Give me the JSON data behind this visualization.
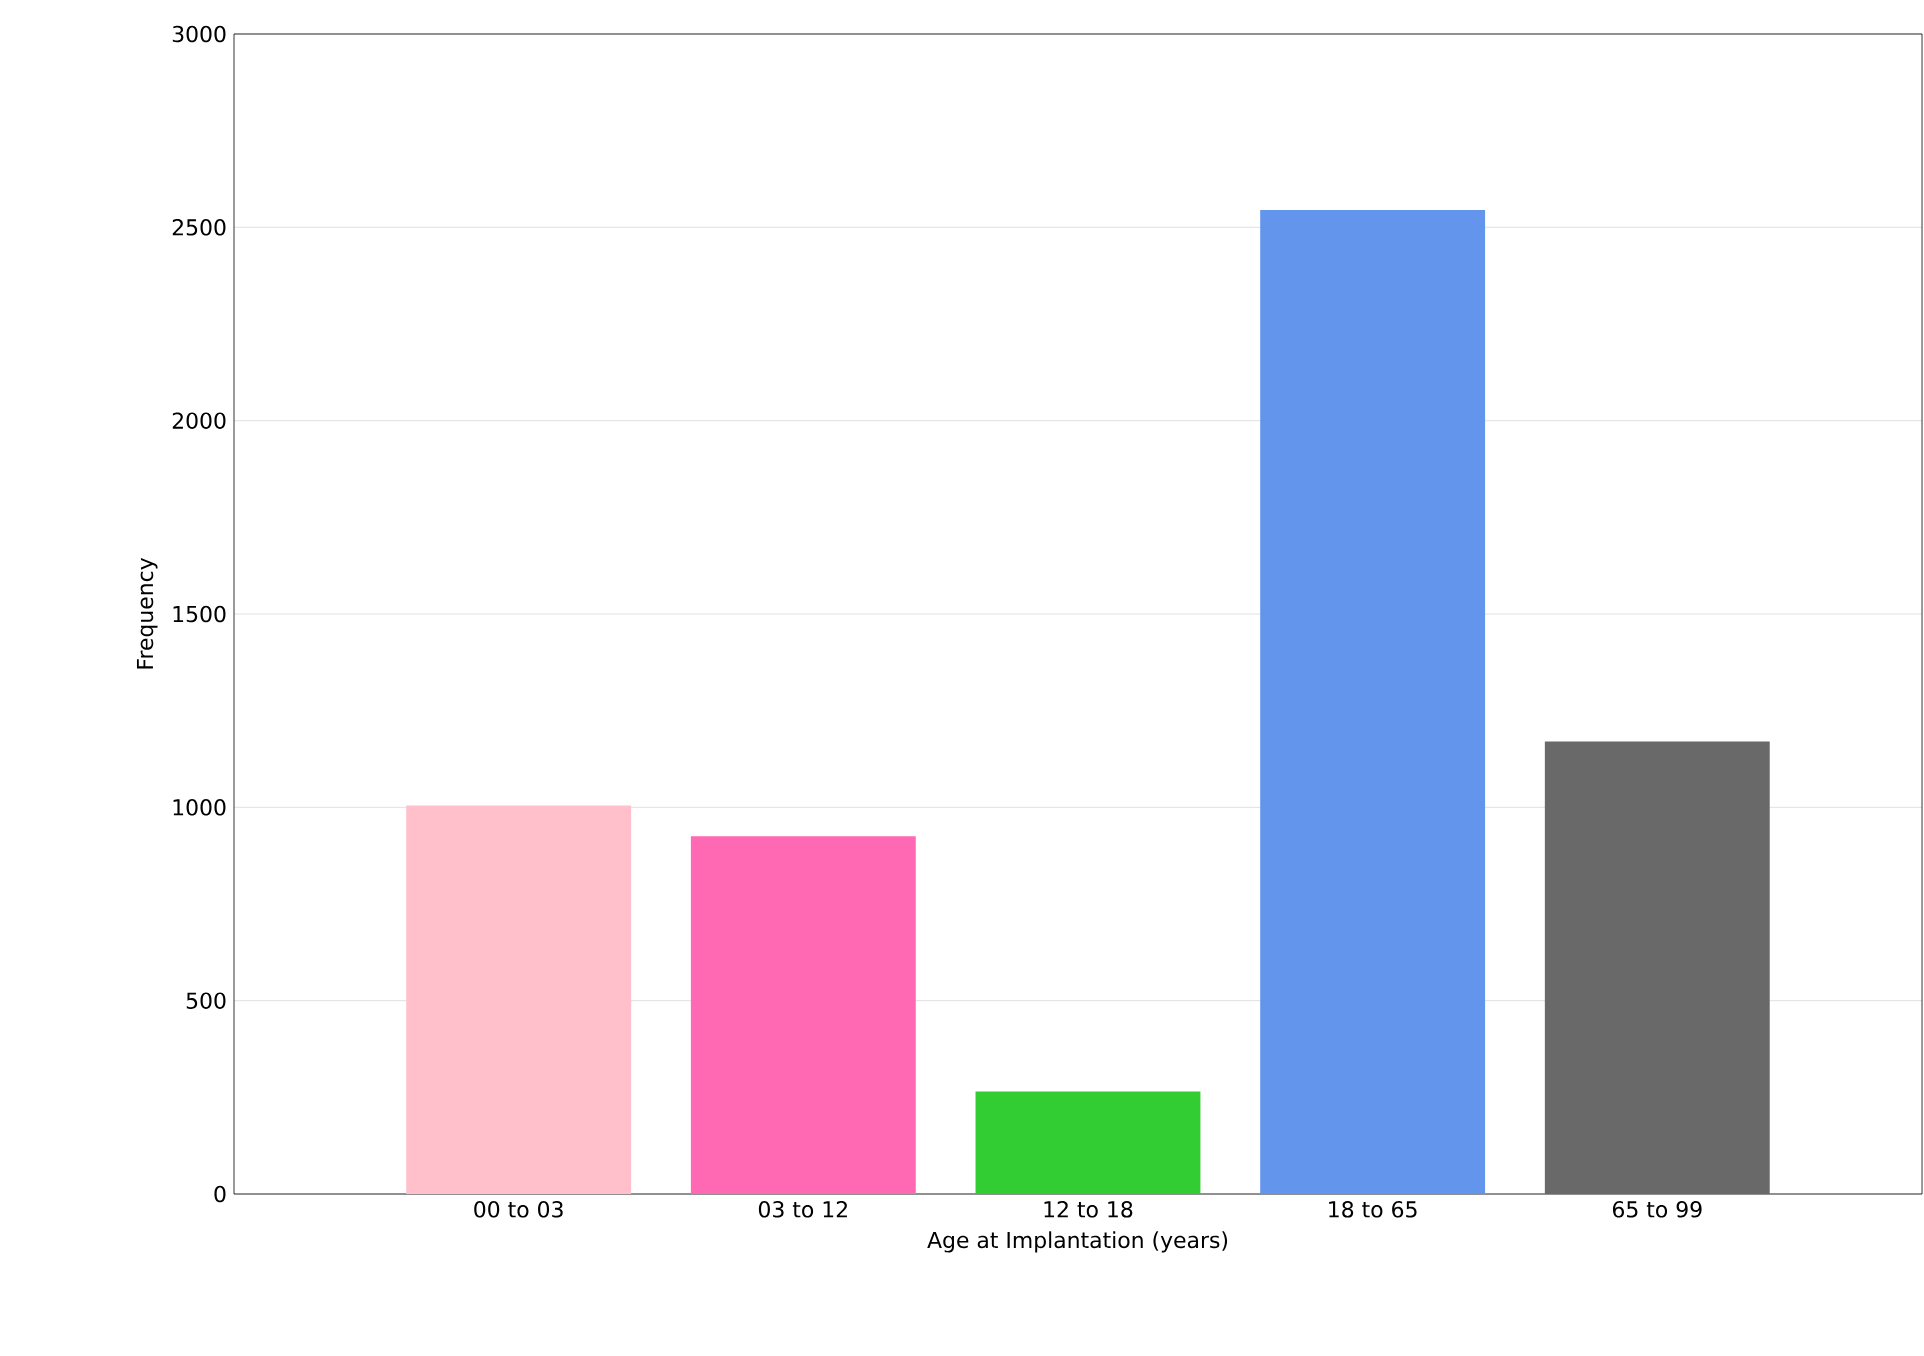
{
  "chart_data": {
    "type": "bar",
    "xlabel": "Age at Implantation (years)",
    "ylabel": "Frequency",
    "categories": [
      "00 to 03",
      "03 to 12",
      "12 to 18",
      "18 to 65",
      "65 to 99"
    ],
    "values": [
      1005,
      925,
      265,
      2545,
      1170
    ],
    "colors": [
      "#ffc0cb",
      "#ff69b4",
      "#32cd32",
      "#6495ed",
      "#696969"
    ],
    "ylim": [
      0,
      3000
    ],
    "yticks": [
      0,
      500,
      1000,
      1500,
      2000,
      2500,
      3000
    ],
    "grid": "y"
  }
}
